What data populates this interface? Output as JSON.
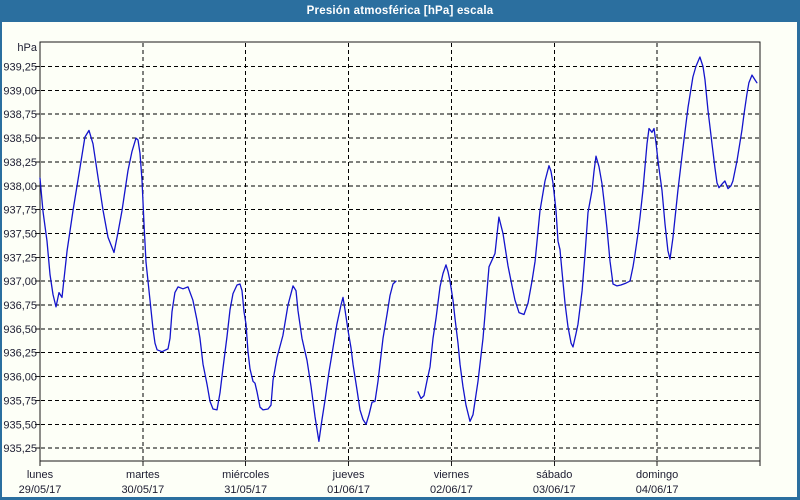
{
  "window": {
    "title": "Presión atmosférica [hPa] escala"
  },
  "colors": {
    "titlebar": "#2b6f9f",
    "frame": "#2b6f9f",
    "background": "#fdfff7",
    "grid": "#000000",
    "axis_text": "#1c1c30",
    "line": "#1414cc"
  },
  "chart_data": {
    "type": "line",
    "title": "Presión atmosférica [hPa] escala",
    "ylabel": "hPa",
    "xlabel": "",
    "legend": "none",
    "grid": "dashed",
    "ylim": [
      935.1,
      939.5
    ],
    "xlim_days": [
      0,
      7
    ],
    "y_axis": {
      "unit": "hPa",
      "tick_labels": [
        "939,25",
        "939,00",
        "938,75",
        "938,50",
        "938,25",
        "938,00",
        "937,75",
        "937,50",
        "937,25",
        "937,00",
        "936,75",
        "936,50",
        "936,25",
        "936,00",
        "935,75",
        "935,50",
        "935,25"
      ],
      "tick_values": [
        939.25,
        939.0,
        938.75,
        938.5,
        938.25,
        938.0,
        937.75,
        937.5,
        937.25,
        937.0,
        936.75,
        936.5,
        936.25,
        936.0,
        935.75,
        935.5,
        935.25
      ]
    },
    "x_axis": {
      "days": [
        {
          "name": "lunes",
          "date": "29/05/17"
        },
        {
          "name": "martes",
          "date": "30/05/17"
        },
        {
          "name": "miércoles",
          "date": "31/05/17"
        },
        {
          "name": "jueves",
          "date": "01/06/17"
        },
        {
          "name": "viernes",
          "date": "02/06/17"
        },
        {
          "name": "sábado",
          "date": "03/06/17"
        },
        {
          "name": "domingo",
          "date": "04/06/17"
        }
      ]
    },
    "series": [
      {
        "name": "presión atmosférica",
        "color": "#1414cc",
        "note": "x in days from lunes 00:00, y in hPa; two segments (data gap on jueves)",
        "segments": [
          [
            [
              0.0,
              938.08
            ],
            [
              0.029,
              937.73
            ],
            [
              0.068,
              937.42
            ],
            [
              0.097,
              937.07
            ],
            [
              0.126,
              936.86
            ],
            [
              0.156,
              936.73
            ],
            [
              0.185,
              936.88
            ],
            [
              0.214,
              936.83
            ],
            [
              0.263,
              937.32
            ],
            [
              0.321,
              937.74
            ],
            [
              0.389,
              938.19
            ],
            [
              0.437,
              938.51
            ],
            [
              0.476,
              938.58
            ],
            [
              0.515,
              938.44
            ],
            [
              0.564,
              938.09
            ],
            [
              0.613,
              937.74
            ],
            [
              0.661,
              937.46
            ],
            [
              0.719,
              937.3
            ],
            [
              0.758,
              937.51
            ],
            [
              0.797,
              937.74
            ],
            [
              0.826,
              937.95
            ],
            [
              0.856,
              938.16
            ],
            [
              0.894,
              938.36
            ],
            [
              0.933,
              938.5
            ],
            [
              0.953,
              938.48
            ],
            [
              0.972,
              938.34
            ],
            [
              0.992,
              938.06
            ],
            [
              1.011,
              937.6
            ],
            [
              1.031,
              937.2
            ],
            [
              1.069,
              936.8
            ],
            [
              1.099,
              936.5
            ],
            [
              1.118,
              936.35
            ],
            [
              1.138,
              936.28
            ],
            [
              1.186,
              936.26
            ],
            [
              1.244,
              936.29
            ],
            [
              1.264,
              936.4
            ],
            [
              1.283,
              936.68
            ],
            [
              1.312,
              936.88
            ],
            [
              1.342,
              936.94
            ],
            [
              1.39,
              936.92
            ],
            [
              1.439,
              936.94
            ],
            [
              1.487,
              936.8
            ],
            [
              1.526,
              936.59
            ],
            [
              1.556,
              936.4
            ],
            [
              1.585,
              936.13
            ],
            [
              1.624,
              935.92
            ],
            [
              1.653,
              935.74
            ],
            [
              1.682,
              935.66
            ],
            [
              1.721,
              935.65
            ],
            [
              1.75,
              935.83
            ],
            [
              1.779,
              936.09
            ],
            [
              1.818,
              936.42
            ],
            [
              1.847,
              936.7
            ],
            [
              1.876,
              936.87
            ],
            [
              1.915,
              936.96
            ],
            [
              1.944,
              936.97
            ],
            [
              1.964,
              936.9
            ],
            [
              1.983,
              936.68
            ],
            [
              2.003,
              936.55
            ],
            [
              2.022,
              936.26
            ],
            [
              2.042,
              936.08
            ],
            [
              2.071,
              935.95
            ],
            [
              2.09,
              935.93
            ],
            [
              2.11,
              935.84
            ],
            [
              2.139,
              935.68
            ],
            [
              2.168,
              935.65
            ],
            [
              2.217,
              935.66
            ],
            [
              2.246,
              935.7
            ],
            [
              2.265,
              935.96
            ],
            [
              2.304,
              936.2
            ],
            [
              2.362,
              936.43
            ],
            [
              2.411,
              936.75
            ],
            [
              2.46,
              936.95
            ],
            [
              2.489,
              936.9
            ],
            [
              2.508,
              936.69
            ],
            [
              2.547,
              936.4
            ],
            [
              2.596,
              936.17
            ],
            [
              2.635,
              935.9
            ],
            [
              2.674,
              935.58
            ],
            [
              2.712,
              935.32
            ],
            [
              2.742,
              935.55
            ],
            [
              2.771,
              935.75
            ],
            [
              2.81,
              936.05
            ],
            [
              2.849,
              936.3
            ],
            [
              2.887,
              936.55
            ],
            [
              2.926,
              936.75
            ],
            [
              2.946,
              936.83
            ],
            [
              2.965,
              936.7
            ],
            [
              2.995,
              936.48
            ],
            [
              3.024,
              936.3
            ],
            [
              3.043,
              936.13
            ],
            [
              3.082,
              935.86
            ],
            [
              3.111,
              935.65
            ],
            [
              3.14,
              935.55
            ],
            [
              3.17,
              935.5
            ],
            [
              3.199,
              935.6
            ],
            [
              3.228,
              935.73
            ],
            [
              3.257,
              935.74
            ],
            [
              3.286,
              935.95
            ],
            [
              3.306,
              936.13
            ],
            [
              3.335,
              936.4
            ],
            [
              3.374,
              936.65
            ],
            [
              3.403,
              936.85
            ],
            [
              3.432,
              936.97
            ],
            [
              3.461,
              937.0
            ]
          ],
          [
            [
              3.675,
              935.84
            ],
            [
              3.704,
              935.77
            ],
            [
              3.733,
              935.8
            ],
            [
              3.762,
              935.95
            ],
            [
              3.792,
              936.1
            ],
            [
              3.821,
              936.4
            ],
            [
              3.85,
              936.61
            ],
            [
              3.889,
              936.94
            ],
            [
              3.918,
              937.08
            ],
            [
              3.947,
              937.17
            ],
            [
              3.967,
              937.1
            ],
            [
              3.986,
              937.0
            ],
            [
              4.015,
              936.8
            ],
            [
              4.035,
              936.61
            ],
            [
              4.064,
              936.35
            ],
            [
              4.083,
              936.13
            ],
            [
              4.112,
              935.9
            ],
            [
              4.142,
              935.7
            ],
            [
              4.181,
              935.53
            ],
            [
              4.21,
              935.6
            ],
            [
              4.229,
              935.74
            ],
            [
              4.258,
              935.95
            ],
            [
              4.278,
              936.13
            ],
            [
              4.307,
              936.4
            ],
            [
              4.326,
              936.65
            ],
            [
              4.365,
              937.15
            ],
            [
              4.424,
              937.29
            ],
            [
              4.462,
              937.67
            ],
            [
              4.501,
              937.5
            ],
            [
              4.55,
              937.16
            ],
            [
              4.589,
              936.95
            ],
            [
              4.618,
              936.8
            ],
            [
              4.657,
              936.67
            ],
            [
              4.706,
              936.65
            ],
            [
              4.744,
              936.77
            ],
            [
              4.783,
              937.0
            ],
            [
              4.813,
              937.21
            ],
            [
              4.861,
              937.74
            ],
            [
              4.91,
              938.05
            ],
            [
              4.949,
              938.21
            ],
            [
              4.968,
              938.15
            ],
            [
              4.988,
              938.02
            ],
            [
              5.017,
              937.74
            ],
            [
              5.036,
              937.42
            ],
            [
              5.056,
              937.33
            ],
            [
              5.075,
              937.1
            ],
            [
              5.104,
              936.77
            ],
            [
              5.133,
              936.52
            ],
            [
              5.163,
              936.35
            ],
            [
              5.182,
              936.31
            ],
            [
              5.211,
              936.45
            ],
            [
              5.231,
              936.55
            ],
            [
              5.27,
              936.9
            ],
            [
              5.299,
              937.28
            ],
            [
              5.328,
              937.72
            ],
            [
              5.367,
              937.95
            ],
            [
              5.386,
              938.15
            ],
            [
              5.406,
              938.31
            ],
            [
              5.435,
              938.2
            ],
            [
              5.464,
              938.02
            ],
            [
              5.493,
              937.75
            ],
            [
              5.512,
              937.56
            ],
            [
              5.542,
              937.21
            ],
            [
              5.571,
              936.97
            ],
            [
              5.61,
              936.95
            ],
            [
              5.648,
              936.96
            ],
            [
              5.697,
              936.98
            ],
            [
              5.736,
              937.0
            ],
            [
              5.765,
              937.15
            ],
            [
              5.785,
              937.28
            ],
            [
              5.814,
              937.5
            ],
            [
              5.833,
              937.67
            ],
            [
              5.862,
              937.95
            ],
            [
              5.882,
              938.2
            ],
            [
              5.901,
              938.44
            ],
            [
              5.921,
              938.6
            ],
            [
              5.95,
              938.56
            ],
            [
              5.969,
              938.6
            ],
            [
              5.989,
              938.45
            ],
            [
              6.008,
              938.26
            ],
            [
              6.047,
              937.95
            ],
            [
              6.076,
              937.6
            ],
            [
              6.105,
              937.32
            ],
            [
              6.125,
              937.23
            ],
            [
              6.154,
              937.46
            ],
            [
              6.202,
              937.95
            ],
            [
              6.251,
              938.4
            ],
            [
              6.3,
              938.82
            ],
            [
              6.348,
              939.14
            ],
            [
              6.377,
              939.25
            ],
            [
              6.416,
              939.35
            ],
            [
              6.446,
              939.25
            ],
            [
              6.465,
              939.11
            ],
            [
              6.494,
              938.79
            ],
            [
              6.533,
              938.44
            ],
            [
              6.562,
              938.19
            ],
            [
              6.582,
              938.03
            ],
            [
              6.601,
              937.98
            ],
            [
              6.64,
              938.03
            ],
            [
              6.659,
              938.05
            ],
            [
              6.689,
              937.97
            ],
            [
              6.718,
              938.0
            ],
            [
              6.737,
              938.05
            ],
            [
              6.776,
              938.26
            ],
            [
              6.805,
              938.45
            ],
            [
              6.824,
              938.58
            ],
            [
              6.844,
              938.75
            ],
            [
              6.873,
              938.96
            ],
            [
              6.892,
              939.08
            ],
            [
              6.922,
              939.16
            ],
            [
              6.951,
              939.11
            ],
            [
              6.97,
              939.08
            ]
          ]
        ]
      }
    ]
  }
}
